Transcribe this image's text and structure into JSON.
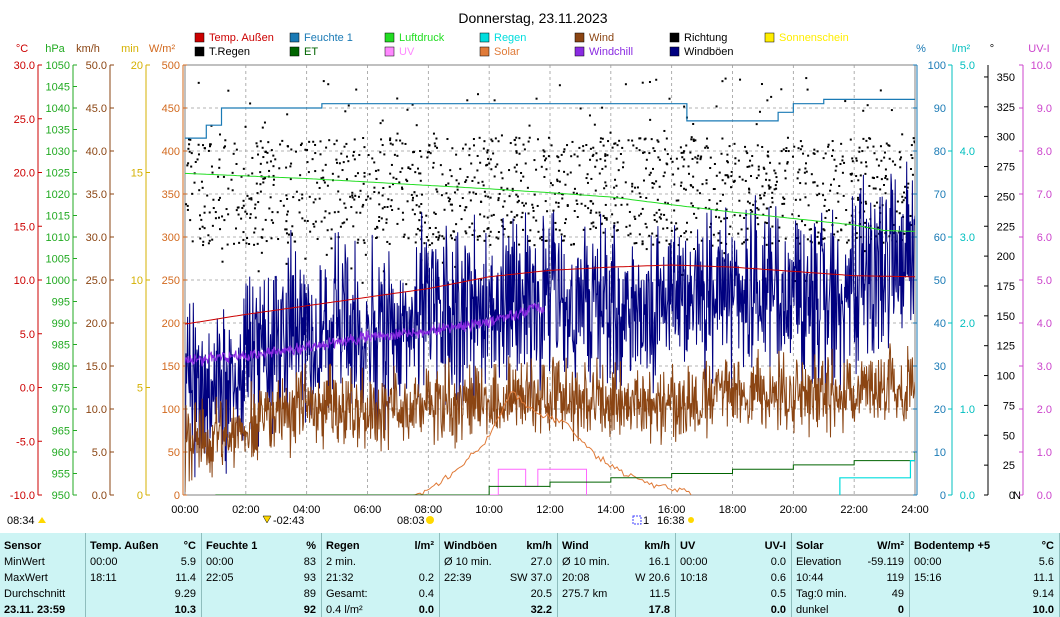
{
  "chart_data": {
    "type": "line",
    "title": "Donnerstag, 23.11.2023",
    "x_ticks": [
      "00:00",
      "02:00",
      "04:00",
      "06:00",
      "08:00",
      "10:00",
      "12:00",
      "14:00",
      "16:00",
      "18:00",
      "20:00",
      "22:00",
      "24:00"
    ],
    "x_range_hours": [
      0,
      24
    ],
    "left_axes": [
      {
        "unit": "°C",
        "color": "#cc0000",
        "range": [
          -10,
          30
        ],
        "ticks": [
          "30.0",
          "25.0",
          "20.0",
          "15.0",
          "10.0",
          "5.0",
          "0.0",
          "-5.0",
          "-10.0"
        ]
      },
      {
        "unit": "hPa",
        "color": "#22aa22",
        "range": [
          950,
          1050
        ],
        "ticks": [
          "1050",
          "1045",
          "1040",
          "1035",
          "1030",
          "1025",
          "1020",
          "1015",
          "1010",
          "1005",
          "1000",
          "995",
          "990",
          "985",
          "980",
          "975",
          "970",
          "965",
          "960",
          "955",
          "950"
        ]
      },
      {
        "unit": "km/h",
        "color": "#8b4513",
        "range": [
          0,
          50
        ],
        "ticks": [
          "50.0",
          "45.0",
          "40.0",
          "35.0",
          "30.0",
          "25.0",
          "20.0",
          "15.0",
          "10.0",
          "5.0",
          "0.0"
        ]
      },
      {
        "unit": "min",
        "color": "#d4b000",
        "range": [
          0,
          20
        ],
        "ticks": [
          "20",
          "15",
          "10",
          "5",
          "0"
        ]
      },
      {
        "unit": "W/m²",
        "color": "#d2691e",
        "range": [
          0,
          500
        ],
        "ticks": [
          "500",
          "450",
          "400",
          "350",
          "300",
          "250",
          "200",
          "150",
          "100",
          "50",
          "0"
        ]
      }
    ],
    "right_axes": [
      {
        "unit": "%",
        "color": "#1a7ab5",
        "range": [
          0,
          100
        ],
        "ticks": [
          "100",
          "90",
          "80",
          "70",
          "60",
          "50",
          "40",
          "30",
          "20",
          "10",
          "0"
        ]
      },
      {
        "unit": "l/m²",
        "color": "#00bfbf",
        "range": [
          0,
          5
        ],
        "ticks": [
          "5.0",
          "4.0",
          "3.0",
          "2.0",
          "1.0",
          "0.0"
        ]
      },
      {
        "unit": "°",
        "color": "#000000",
        "range": [
          0,
          360
        ],
        "ticks": [
          "350",
          "325",
          "300",
          "275",
          "250",
          "225",
          "200",
          "175",
          "150",
          "125",
          "100",
          "75",
          "50",
          "25",
          "0"
        ],
        "extra_label": "N"
      },
      {
        "unit": "UV-I",
        "color": "#cc44cc",
        "range": [
          0,
          10
        ],
        "ticks": [
          "10.0",
          "9.0",
          "8.0",
          "7.0",
          "6.0",
          "5.0",
          "4.0",
          "3.0",
          "2.0",
          "1.0",
          "0.0"
        ]
      }
    ],
    "legend": [
      {
        "label": "Temp. Außen",
        "color": "#cc0000"
      },
      {
        "label": "Feuchte 1",
        "color": "#1a7ab5"
      },
      {
        "label": "Luftdruck",
        "color": "#22dd22"
      },
      {
        "label": "Regen",
        "color": "#00dddd"
      },
      {
        "label": "Wind",
        "color": "#8b4513"
      },
      {
        "label": "Richtung",
        "color": "#000000"
      },
      {
        "label": "Sonnenschein",
        "color": "#ffee00"
      },
      {
        "label": "T.Regen",
        "color": "#000000"
      },
      {
        "label": "ET",
        "color": "#006400"
      },
      {
        "label": "UV",
        "color": "#ff88ff"
      },
      {
        "label": "Solar",
        "color": "#e07b39"
      },
      {
        "label": "Windchill",
        "color": "#8a2be2"
      },
      {
        "label": "Windböen",
        "color": "#000080"
      }
    ],
    "series": [
      {
        "name": "Temp. Außen",
        "unit": "°C",
        "x": [
          0,
          2,
          4,
          6,
          8,
          10,
          12,
          14,
          16,
          18,
          20,
          22,
          24
        ],
        "values": [
          5.9,
          6.8,
          7.6,
          8.4,
          9.2,
          10.3,
          10.9,
          11.2,
          11.4,
          11.2,
          10.8,
          10.4,
          10.3
        ]
      },
      {
        "name": "Feuchte 1",
        "unit": "%",
        "x": [
          0,
          0.7,
          1.2,
          4.5,
          7,
          9.5,
          12,
          14,
          16.5,
          18,
          19.5,
          20,
          21,
          23.5,
          24
        ],
        "values": [
          83,
          86,
          90,
          91,
          91,
          91,
          91,
          91,
          87,
          87,
          89,
          91,
          92,
          92,
          92
        ]
      },
      {
        "name": "Luftdruck",
        "unit": "hPa",
        "x": [
          0,
          2,
          4,
          6,
          8,
          10,
          12,
          14,
          16,
          18,
          20,
          22,
          23,
          24
        ],
        "values": [
          1024.8,
          1024.2,
          1023.6,
          1022.8,
          1022.0,
          1021.2,
          1020.3,
          1019.3,
          1017.5,
          1015.8,
          1014.3,
          1012.8,
          1011.5,
          1011.3
        ]
      },
      {
        "name": "Windchill",
        "unit": "°C",
        "x": [
          0,
          2,
          4,
          6,
          8,
          10,
          11.8
        ],
        "values": [
          2.5,
          3.0,
          3.7,
          4.7,
          5.2,
          6.2,
          7.5
        ]
      },
      {
        "name": "Wind",
        "unit": "km/h",
        "x": [
          0,
          2,
          4,
          6,
          8,
          10,
          12,
          14,
          16,
          18,
          20,
          22,
          24
        ],
        "values": [
          5.5,
          8.0,
          10.5,
          9.5,
          10.5,
          11.0,
          11.5,
          11.0,
          10.5,
          12.0,
          11.5,
          12.0,
          13.0
        ]
      },
      {
        "name": "Windböen",
        "unit": "km/h",
        "x": [
          0,
          2,
          4,
          6,
          8,
          10,
          12,
          14,
          16,
          18,
          20,
          22,
          24
        ],
        "values": [
          12,
          16,
          20,
          19,
          21,
          22,
          22,
          21,
          23,
          24,
          23,
          25,
          28
        ]
      },
      {
        "name": "Solar",
        "unit": "W/m²",
        "x": [
          7.5,
          8.0,
          9.0,
          10.0,
          10.74,
          11.5,
          12.5,
          13.5,
          14.5,
          15.5,
          16.3,
          16.64
        ],
        "values": [
          0,
          5,
          30,
          70,
          119,
          95,
          85,
          45,
          25,
          10,
          5,
          0
        ]
      },
      {
        "name": "UV",
        "unit": "UV-I",
        "x": [
          10.0,
          10.3,
          11.0,
          11.2,
          11.6,
          12.2,
          12.5,
          13.0,
          13.2
        ],
        "values": [
          0,
          0.6,
          0.6,
          0.2,
          0.6,
          0.6,
          0.6,
          0.6,
          0
        ]
      },
      {
        "name": "ET",
        "unit": "l/m²",
        "x": [
          1,
          7.9,
          10,
          12,
          14,
          16,
          18,
          20,
          22,
          24
        ],
        "values": [
          0.0,
          0.0,
          0.1,
          0.15,
          0.2,
          0.25,
          0.3,
          0.35,
          0.4,
          0.5
        ]
      },
      {
        "name": "Regen",
        "unit": "l/m²",
        "x": [
          21.5,
          21.53,
          23.8,
          23.85,
          24
        ],
        "values": [
          0,
          0.2,
          0.2,
          0.4,
          0.4
        ]
      }
    ],
    "direction": {
      "name": "Richtung",
      "unit": "°",
      "range": [
        175,
        350
      ],
      "typical": [
        210,
        300
      ]
    },
    "markers": [
      {
        "label": "08:34",
        "kind": "sunrise-arrow"
      },
      {
        "label": "02:43",
        "kind": "moon-marker"
      },
      {
        "label": "08:03",
        "kind": "sun-marker"
      },
      {
        "label": "16:38",
        "kind": "sunset-marker"
      }
    ],
    "grid": true
  },
  "stats": {
    "columns": [
      {
        "title": "Sensor",
        "unit": "",
        "rows": [
          "MinWert",
          "MaxWert",
          "Durchschnitt",
          "23.11. 23:59"
        ]
      },
      {
        "title": "Temp. Außen",
        "unit": "°C",
        "rows": [
          [
            "00:00",
            "5.9"
          ],
          [
            "18:11",
            "11.4"
          ],
          [
            "",
            "9.29"
          ],
          [
            "",
            "10.3"
          ]
        ]
      },
      {
        "title": "Feuchte 1",
        "unit": "%",
        "rows": [
          [
            "00:00",
            "83"
          ],
          [
            "22:05",
            "93"
          ],
          [
            "",
            "89"
          ],
          [
            "",
            "92"
          ]
        ]
      },
      {
        "title": "Regen",
        "unit": "l/m²",
        "rows": [
          [
            "2 min.",
            ""
          ],
          [
            "21:32",
            "0.2"
          ],
          [
            "Gesamt:",
            "0.4"
          ],
          [
            "0.4 l/m²",
            "0.0"
          ]
        ]
      },
      {
        "title": "Windböen",
        "unit": "km/h",
        "rows": [
          [
            "Ø 10 min.",
            "27.0"
          ],
          [
            "22:39",
            "SW 37.0"
          ],
          [
            "",
            "20.5"
          ],
          [
            "",
            "32.2"
          ]
        ]
      },
      {
        "title": "Wind",
        "unit": "km/h",
        "rows": [
          [
            "Ø 10 min.",
            "16.1"
          ],
          [
            "20:08",
            "W 20.6"
          ],
          [
            "275.7 km",
            "11.5"
          ],
          [
            "",
            "17.8"
          ]
        ]
      },
      {
        "title": "UV",
        "unit": "UV-I",
        "rows": [
          [
            "00:00",
            "0.0"
          ],
          [
            "10:18",
            "0.6"
          ],
          [
            "",
            "0.5"
          ],
          [
            "",
            "0.0"
          ]
        ]
      },
      {
        "title": "Solar",
        "unit": "W/m²",
        "rows": [
          [
            "Elevation",
            "-59.119"
          ],
          [
            "10:44",
            "119"
          ],
          [
            "Tag:0 min.",
            "49"
          ],
          [
            "dunkel",
            "0"
          ]
        ]
      },
      {
        "title": "Bodentemp +5",
        "unit": "°C",
        "rows": [
          [
            "00:00",
            "5.6"
          ],
          [
            "15:16",
            "11.1"
          ],
          [
            "",
            "9.14"
          ],
          [
            "",
            "10.0"
          ]
        ]
      }
    ]
  }
}
